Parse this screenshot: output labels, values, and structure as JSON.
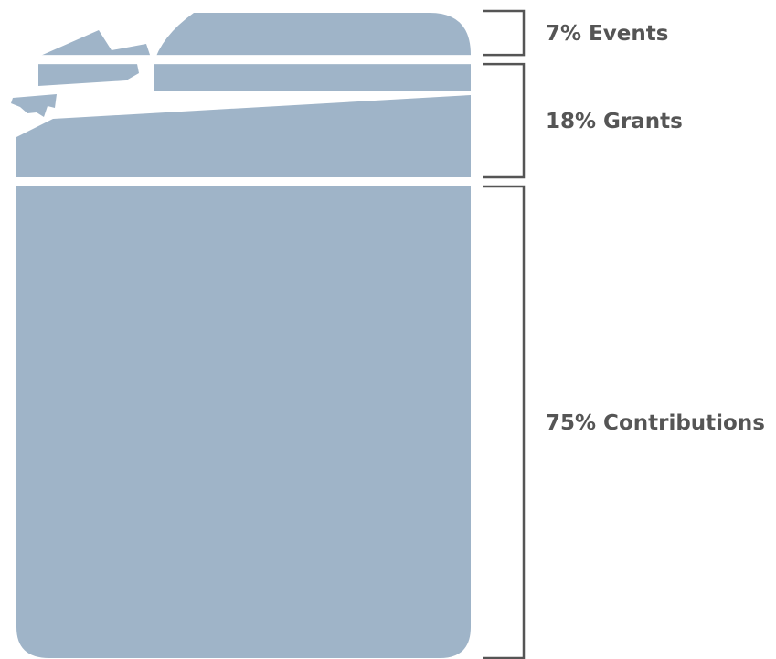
{
  "chart_data": {
    "type": "stacked-bar",
    "unit": "%",
    "categories": [
      "Events",
      "Grants",
      "Contributions"
    ],
    "values": [
      7,
      18,
      75
    ],
    "labels": [
      "7% Events",
      "18% Grants",
      "75% Contributions"
    ],
    "order": "top-to-bottom",
    "title": "",
    "xlabel": "",
    "ylabel": "",
    "ylim": [
      0,
      100
    ],
    "grid": false,
    "legend": "none"
  },
  "colors": {
    "fill": "#9fb4c8",
    "bracket": "#555555",
    "label": "#555555",
    "background": "#ffffff"
  },
  "shape": "jerry-can-icon"
}
